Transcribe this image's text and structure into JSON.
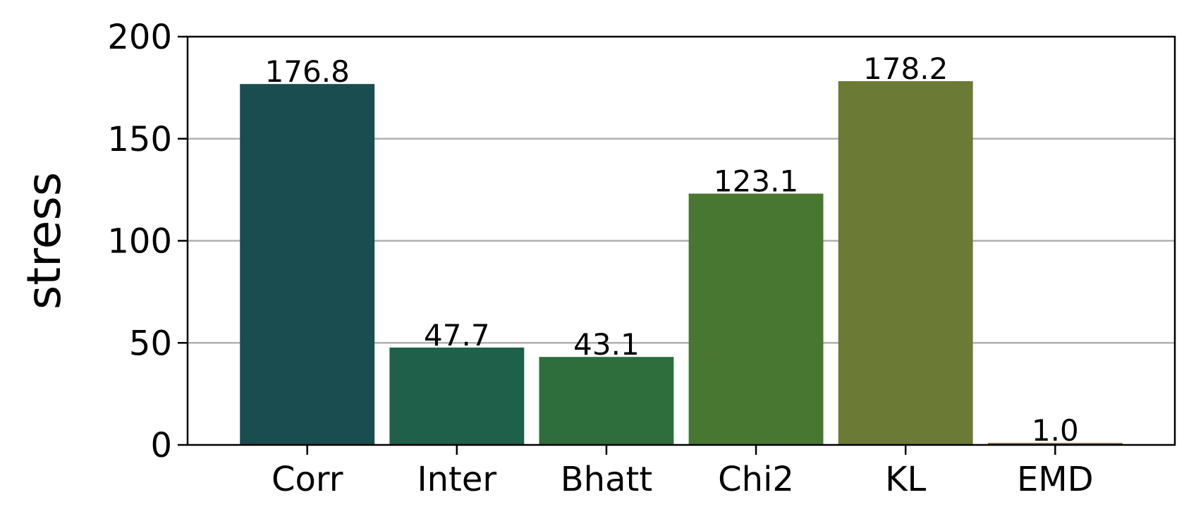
{
  "chart_data": {
    "type": "bar",
    "categories": [
      "Corr",
      "Inter",
      "Bhatt",
      "Chi2",
      "KL",
      "EMD"
    ],
    "values": [
      176.8,
      47.7,
      43.1,
      123.1,
      178.2,
      1.0
    ],
    "value_labels": [
      "176.8",
      "47.7",
      "43.1",
      "123.1",
      "178.2",
      "1.0"
    ],
    "colors": [
      "#194d4f",
      "#1e6049",
      "#2d6e3c",
      "#487732",
      "#6b7a34",
      "#8a7a2a"
    ],
    "ylabel": "stress",
    "xlabel": "",
    "title": "",
    "ylim": [
      0,
      200
    ],
    "yticks": [
      0,
      50,
      100,
      150,
      200
    ],
    "grid": "horizontal",
    "gridColor": "#b0b0b0"
  }
}
